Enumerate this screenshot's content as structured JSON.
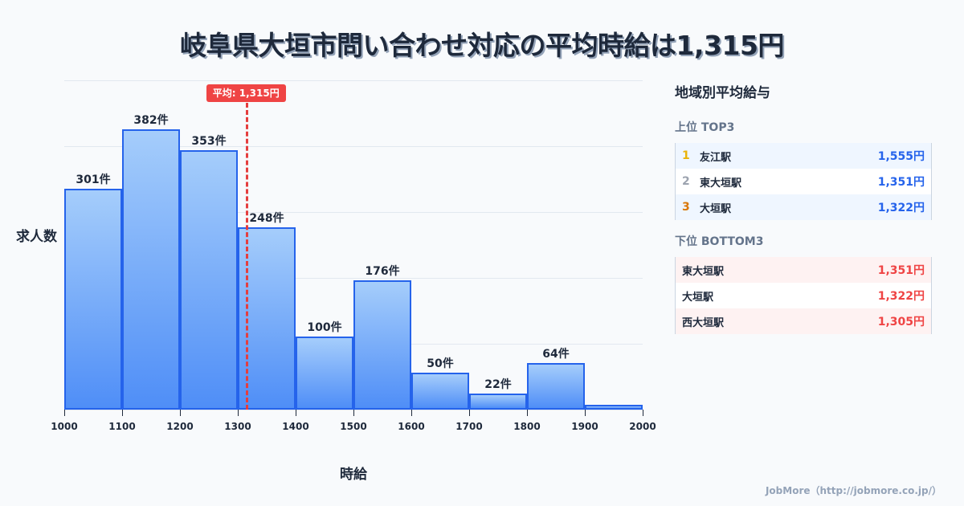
{
  "title": "岐阜県大垣市問い合わせ対応の平均時給は1,315円",
  "chart_data": {
    "type": "bar",
    "title": "岐阜県大垣市問い合わせ対応の平均時給は1,315円",
    "xlabel": "時給",
    "ylabel": "求人数",
    "x_ticks": [
      "1000",
      "1100",
      "1200",
      "1300",
      "1400",
      "1500",
      "1600",
      "1700",
      "1800",
      "1900",
      "2000"
    ],
    "categories": [
      "1000-1100",
      "1100-1200",
      "1200-1300",
      "1300-1400",
      "1400-1500",
      "1500-1600",
      "1600-1700",
      "1700-1800",
      "1800-1900",
      "1900-2000"
    ],
    "values": [
      301,
      382,
      353,
      248,
      100,
      176,
      50,
      22,
      64,
      7
    ],
    "labels": [
      "301件",
      "382件",
      "353件",
      "248件",
      "100件",
      "176件",
      "50件",
      "22件",
      "64件",
      ""
    ],
    "ylim": [
      0,
      450
    ],
    "grid": true,
    "average": {
      "value": 1315,
      "label": "平均: 1,315円"
    }
  },
  "panel": {
    "title": "地域別平均給与",
    "top_title": "上位 TOP3",
    "top": [
      {
        "rank": "1",
        "name": "友江駅",
        "value": "1,555円",
        "color": "#eab308"
      },
      {
        "rank": "2",
        "name": "東大垣駅",
        "value": "1,351円",
        "color": "#9ca3af"
      },
      {
        "rank": "3",
        "name": "大垣駅",
        "value": "1,322円",
        "color": "#d97706"
      }
    ],
    "bottom_title": "下位 BOTTOM3",
    "bottom": [
      {
        "name": "東大垣駅",
        "value": "1,351円"
      },
      {
        "name": "大垣駅",
        "value": "1,322円"
      },
      {
        "name": "西大垣駅",
        "value": "1,305円"
      }
    ]
  },
  "footer": "JobMore（http://jobmore.co.jp/）"
}
